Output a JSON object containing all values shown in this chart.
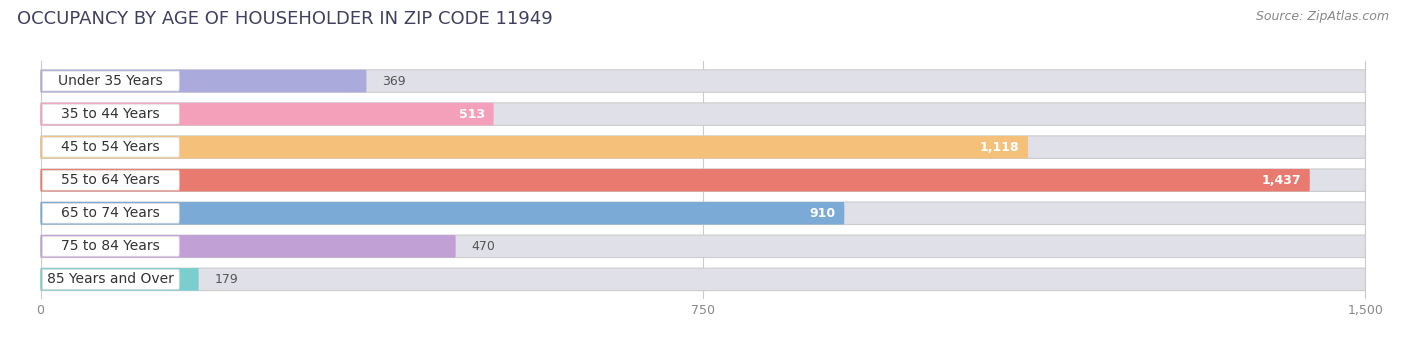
{
  "title": "OCCUPANCY BY AGE OF HOUSEHOLDER IN ZIP CODE 11949",
  "source": "Source: ZipAtlas.com",
  "categories": [
    "Under 35 Years",
    "35 to 44 Years",
    "45 to 54 Years",
    "55 to 64 Years",
    "65 to 74 Years",
    "75 to 84 Years",
    "85 Years and Over"
  ],
  "values": [
    369,
    513,
    1118,
    1437,
    910,
    470,
    179
  ],
  "bar_colors": [
    "#aaaadd",
    "#f5a0bb",
    "#f5c07a",
    "#e87a70",
    "#7aaad5",
    "#c0a0d5",
    "#7acece"
  ],
  "bar_bg_color": "#e0e0e8",
  "xlim_max": 1500,
  "xticks": [
    0,
    750,
    1500
  ],
  "xtick_labels": [
    "0",
    "750",
    "1,500"
  ],
  "title_fontsize": 13,
  "source_fontsize": 9,
  "label_fontsize": 10,
  "value_fontsize": 9,
  "background_color": "#ffffff"
}
